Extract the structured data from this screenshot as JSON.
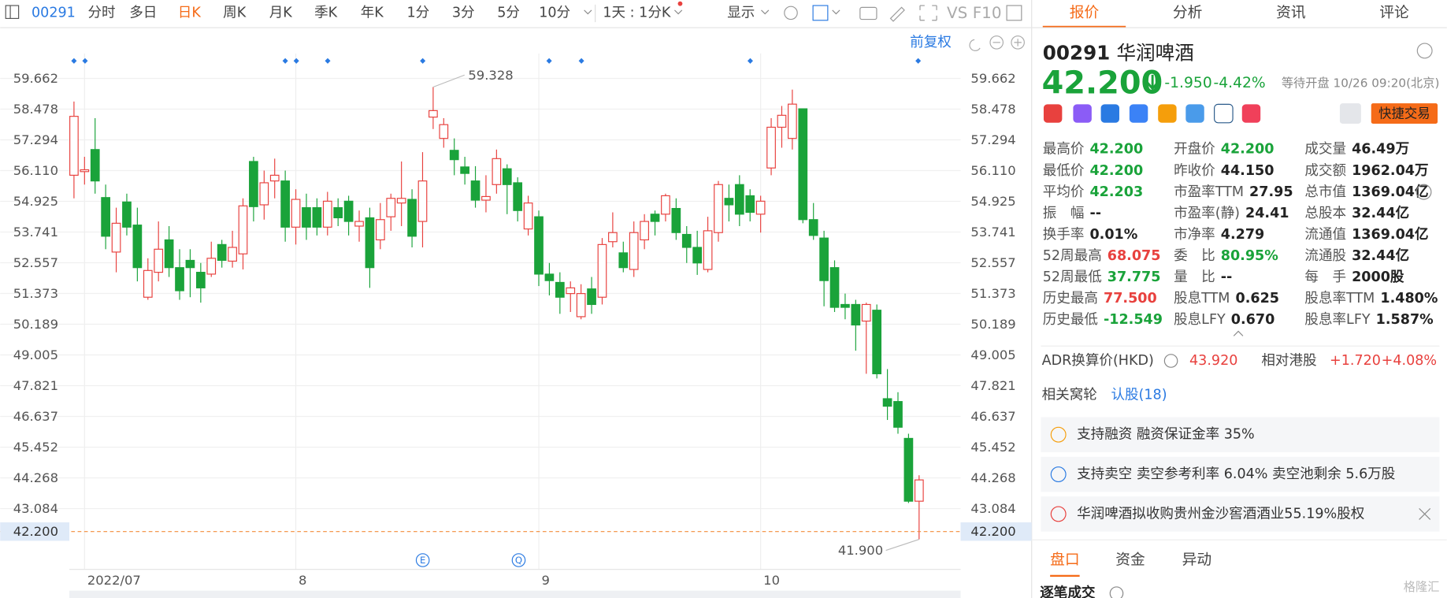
{
  "toolbar": {
    "code": "00291",
    "periods": [
      "分时",
      "多日",
      "日K",
      "周K",
      "月K",
      "季K",
      "年K",
      "1分",
      "3分",
      "5分",
      "10分"
    ],
    "active": 2,
    "compound": "1天 : 1分K",
    "display": "显示",
    "vs": "VS",
    "f10": "F10"
  },
  "chart_controls": {
    "adjust": "前复权"
  },
  "chart_data": {
    "type": "candlestick",
    "up_color": "#e8413e",
    "down_color": "#1aa33a",
    "grid": true,
    "categories": [
      null,
      "2022/07",
      null,
      null,
      null,
      null,
      null,
      null,
      null,
      null,
      null,
      null,
      null,
      null,
      null,
      null,
      null,
      null,
      null,
      null,
      null,
      "8",
      null,
      null,
      null,
      null,
      null,
      null,
      null,
      null,
      null,
      null,
      null,
      null,
      null,
      null,
      null,
      null,
      null,
      null,
      null,
      null,
      null,
      null,
      "9",
      null,
      null,
      null,
      null,
      null,
      null,
      null,
      null,
      null,
      null,
      null,
      null,
      null,
      null,
      null,
      null,
      null,
      null,
      null,
      null,
      "10",
      null,
      null,
      null,
      null,
      null,
      null,
      null,
      null,
      null,
      null,
      null,
      null,
      null,
      null
    ],
    "ohlc": [
      [
        55.93,
        58.77,
        55.04,
        58.2
      ],
      [
        56.07,
        56.64,
        55.57,
        56.14
      ],
      [
        56.92,
        58.13,
        55.22,
        55.71
      ],
      [
        55.07,
        55.57,
        53.08,
        53.58
      ],
      [
        52.97,
        54.68,
        52.19,
        54.08
      ],
      [
        54.9,
        55.22,
        53.61,
        53.93
      ],
      [
        54.01,
        54.68,
        51.84,
        52.37
      ],
      [
        51.23,
        52.73,
        51.13,
        52.26
      ],
      [
        52.19,
        54.15,
        51.84,
        53.08
      ],
      [
        53.44,
        53.97,
        52.01,
        52.37
      ],
      [
        52.37,
        53.08,
        51.13,
        51.48
      ],
      [
        52.65,
        53.08,
        51.23,
        52.37
      ],
      [
        52.19,
        52.55,
        51.02,
        51.59
      ],
      [
        52.12,
        53.37,
        52.01,
        52.73
      ],
      [
        53.26,
        53.44,
        52.37,
        52.65
      ],
      [
        52.62,
        53.79,
        52.37,
        53.15
      ],
      [
        52.9,
        55.04,
        52.3,
        54.75
      ],
      [
        56.46,
        56.64,
        54.15,
        54.72
      ],
      [
        54.79,
        56.11,
        54.22,
        55.64
      ],
      [
        55.71,
        56.57,
        55.04,
        55.93
      ],
      [
        55.71,
        56.11,
        53.37,
        53.93
      ],
      [
        53.93,
        55.39,
        53.26,
        55.0
      ],
      [
        54.68,
        55.22,
        53.44,
        53.93
      ],
      [
        54.68,
        55.04,
        53.61,
        53.93
      ],
      [
        53.93,
        55.29,
        53.61,
        54.93
      ],
      [
        54.68,
        55.04,
        53.97,
        54.29
      ],
      [
        54.93,
        55.14,
        53.61,
        54.15
      ],
      [
        53.97,
        54.57,
        53.37,
        54.15
      ],
      [
        54.29,
        54.68,
        51.59,
        52.37
      ],
      [
        53.44,
        54.86,
        53.08,
        54.22
      ],
      [
        54.33,
        55.22,
        53.79,
        55.04
      ],
      [
        54.86,
        56.46,
        53.97,
        55.04
      ],
      [
        55.0,
        55.39,
        53.15,
        53.58
      ],
      [
        54.15,
        56.82,
        53.15,
        55.71
      ],
      [
        58.17,
        59.328,
        57.71,
        58.42
      ],
      [
        57.35,
        58.13,
        56.99,
        57.88
      ],
      [
        56.89,
        57.35,
        55.93,
        56.53
      ],
      [
        56.25,
        56.64,
        55.57,
        56.0
      ],
      [
        55.71,
        56.28,
        54.68,
        54.97
      ],
      [
        54.97,
        55.93,
        54.5,
        55.11
      ],
      [
        55.57,
        56.92,
        55.22,
        56.57
      ],
      [
        56.18,
        56.35,
        54.43,
        55.57
      ],
      [
        55.64,
        55.85,
        54.15,
        54.57
      ],
      [
        53.86,
        55.14,
        53.61,
        54.86
      ],
      [
        54.33,
        54.57,
        51.66,
        52.12
      ],
      [
        52.12,
        52.55,
        51.3,
        51.87
      ],
      [
        51.8,
        52.19,
        50.59,
        51.23
      ],
      [
        51.37,
        51.84,
        50.66,
        51.59
      ],
      [
        50.48,
        51.73,
        50.38,
        51.37
      ],
      [
        51.55,
        52.01,
        50.59,
        50.95
      ],
      [
        51.23,
        53.51,
        50.95,
        53.26
      ],
      [
        53.37,
        54.5,
        53.15,
        53.72
      ],
      [
        52.94,
        53.37,
        52.19,
        52.37
      ],
      [
        52.3,
        54.15,
        52.01,
        53.72
      ],
      [
        53.44,
        54.43,
        53.08,
        54.15
      ],
      [
        54.43,
        54.57,
        53.61,
        54.15
      ],
      [
        54.43,
        55.22,
        54.15,
        55.14
      ],
      [
        54.65,
        55.04,
        53.44,
        53.72
      ],
      [
        53.65,
        53.97,
        52.55,
        53.15
      ],
      [
        53.15,
        53.79,
        52.09,
        52.55
      ],
      [
        52.3,
        54.33,
        52.19,
        53.79
      ],
      [
        53.72,
        55.71,
        53.37,
        55.57
      ],
      [
        55.04,
        55.57,
        54.15,
        54.79
      ],
      [
        55.57,
        55.93,
        53.97,
        54.43
      ],
      [
        55.14,
        55.39,
        54.15,
        54.5
      ],
      [
        54.43,
        55.14,
        53.72,
        54.93
      ],
      [
        56.21,
        58.13,
        55.93,
        57.78
      ],
      [
        57.78,
        58.6,
        56.99,
        58.24
      ],
      [
        57.35,
        59.23,
        56.92,
        58.67
      ],
      [
        58.49,
        58.49,
        54.08,
        54.22
      ],
      [
        54.22,
        54.86,
        53.44,
        53.61
      ],
      [
        53.51,
        53.79,
        50.88,
        51.87
      ],
      [
        52.37,
        52.65,
        50.66,
        50.84
      ],
      [
        50.95,
        51.37,
        50.38,
        50.84
      ],
      [
        50.95,
        51.13,
        49.17,
        50.16
      ],
      [
        50.31,
        51.02,
        48.28,
        50.95
      ],
      [
        50.73,
        50.95,
        48.1,
        48.28
      ],
      [
        47.32,
        48.46,
        46.5,
        47.03
      ],
      [
        47.21,
        47.57,
        45.97,
        46.22
      ],
      [
        45.79,
        45.97,
        43.3,
        43.37
      ],
      [
        43.37,
        44.37,
        41.9,
        44.19
      ]
    ],
    "ylim": [
      40.92,
      61.26
    ],
    "yticks": [
      59.662,
      58.478,
      57.294,
      {
        "value": 56.11,
        "label": "56.110"
      },
      54.925,
      53.741,
      52.557,
      51.373,
      50.189,
      49.005,
      47.821,
      46.637,
      45.452,
      44.268,
      43.084
    ],
    "high_label": "59.328",
    "low_label": "41.900",
    "last_price": {
      "value": 42.2,
      "label": "42.200"
    }
  },
  "quote": {
    "tabs": [
      "报价",
      "分析",
      "资讯",
      "评论"
    ],
    "code": "00291",
    "name": "华润啤酒",
    "price": "42.200",
    "change": "-1.950",
    "change_pct": "-4.42%",
    "status": "等待开盘 10/26 09:20(北京)",
    "trade_button": "快捷交易",
    "stats": [
      [
        {
          "label": "最高价",
          "value": "42.200",
          "color": "#1aa33a"
        },
        {
          "label": "最低价",
          "value": "42.200",
          "color": "#1aa33a"
        },
        {
          "label": "平均价",
          "value": "42.203",
          "color": "#1aa33a"
        },
        {
          "label": "振　幅",
          "value": "--",
          "color": "#222222"
        },
        {
          "label": "换手率",
          "value": "0.01%",
          "color": "#222222"
        },
        {
          "label": "52周最高",
          "value": "68.075",
          "color": "#e8413e"
        },
        {
          "label": "52周最低",
          "value": "37.775",
          "color": "#1aa33a"
        },
        {
          "label": "历史最高",
          "value": "77.500",
          "color": "#e8413e"
        },
        {
          "label": "历史最低",
          "value": "-12.549",
          "color": "#1aa33a"
        }
      ],
      [
        {
          "label": "开盘价",
          "value": "42.200",
          "color": "#1aa33a"
        },
        {
          "label": "昨收价",
          "value": "44.150",
          "color": "#222222"
        },
        {
          "label": "市盈率TTM",
          "value": "27.95",
          "color": "#222222"
        },
        {
          "label": "市盈率(静)",
          "value": "24.41",
          "color": "#222222"
        },
        {
          "label": "市净率",
          "value": "4.279",
          "color": "#222222"
        },
        {
          "label": "委　比",
          "value": "80.95%",
          "color": "#1aa33a"
        },
        {
          "label": "量　比",
          "value": "--",
          "color": "#222222"
        },
        {
          "label": "股息TTM",
          "value": "0.625",
          "color": "#222222"
        },
        {
          "label": "股息LFY",
          "value": "0.670",
          "color": "#222222"
        }
      ],
      [
        {
          "label": "成交量",
          "value": "46.49万",
          "color": "#222222"
        },
        {
          "label": "成交额",
          "value": "1962.04万",
          "color": "#222222"
        },
        {
          "label": "总市值",
          "value": "1369.04亿",
          "color": "#222222"
        },
        {
          "label": "总股本",
          "value": "32.44亿",
          "color": "#222222"
        },
        {
          "label": "流通值",
          "value": "1369.04亿",
          "color": "#222222"
        },
        {
          "label": "流通股",
          "value": "32.44亿",
          "color": "#222222"
        },
        {
          "label": "每　手",
          "value": "2000股",
          "color": "#222222"
        },
        {
          "label": "股息率TTM",
          "value": "1.480%",
          "color": "#222222"
        },
        {
          "label": "股息率LFY",
          "value": "1.587%",
          "color": "#222222"
        }
      ]
    ],
    "adr_label": "ADR换算价(HKD)",
    "adr_value": "43.920",
    "relative_label": "相对港股",
    "relative_change": "+1.720",
    "relative_pct": "+4.08%",
    "warrant_label": "相关窝轮",
    "warrant_link": "认股(18)",
    "notices": [
      "支持融资 融资保证金率 35%",
      "支持卖空 卖空参考利率 6.04% 卖空池剩余 5.6万股",
      "华润啤酒拟收购贵州金沙窖酒酒业55.19%股权"
    ],
    "bottom_tabs": [
      "盘口",
      "资金",
      "异动"
    ],
    "trades_title": "逐笔成交",
    "watermark": "格隆汇"
  }
}
